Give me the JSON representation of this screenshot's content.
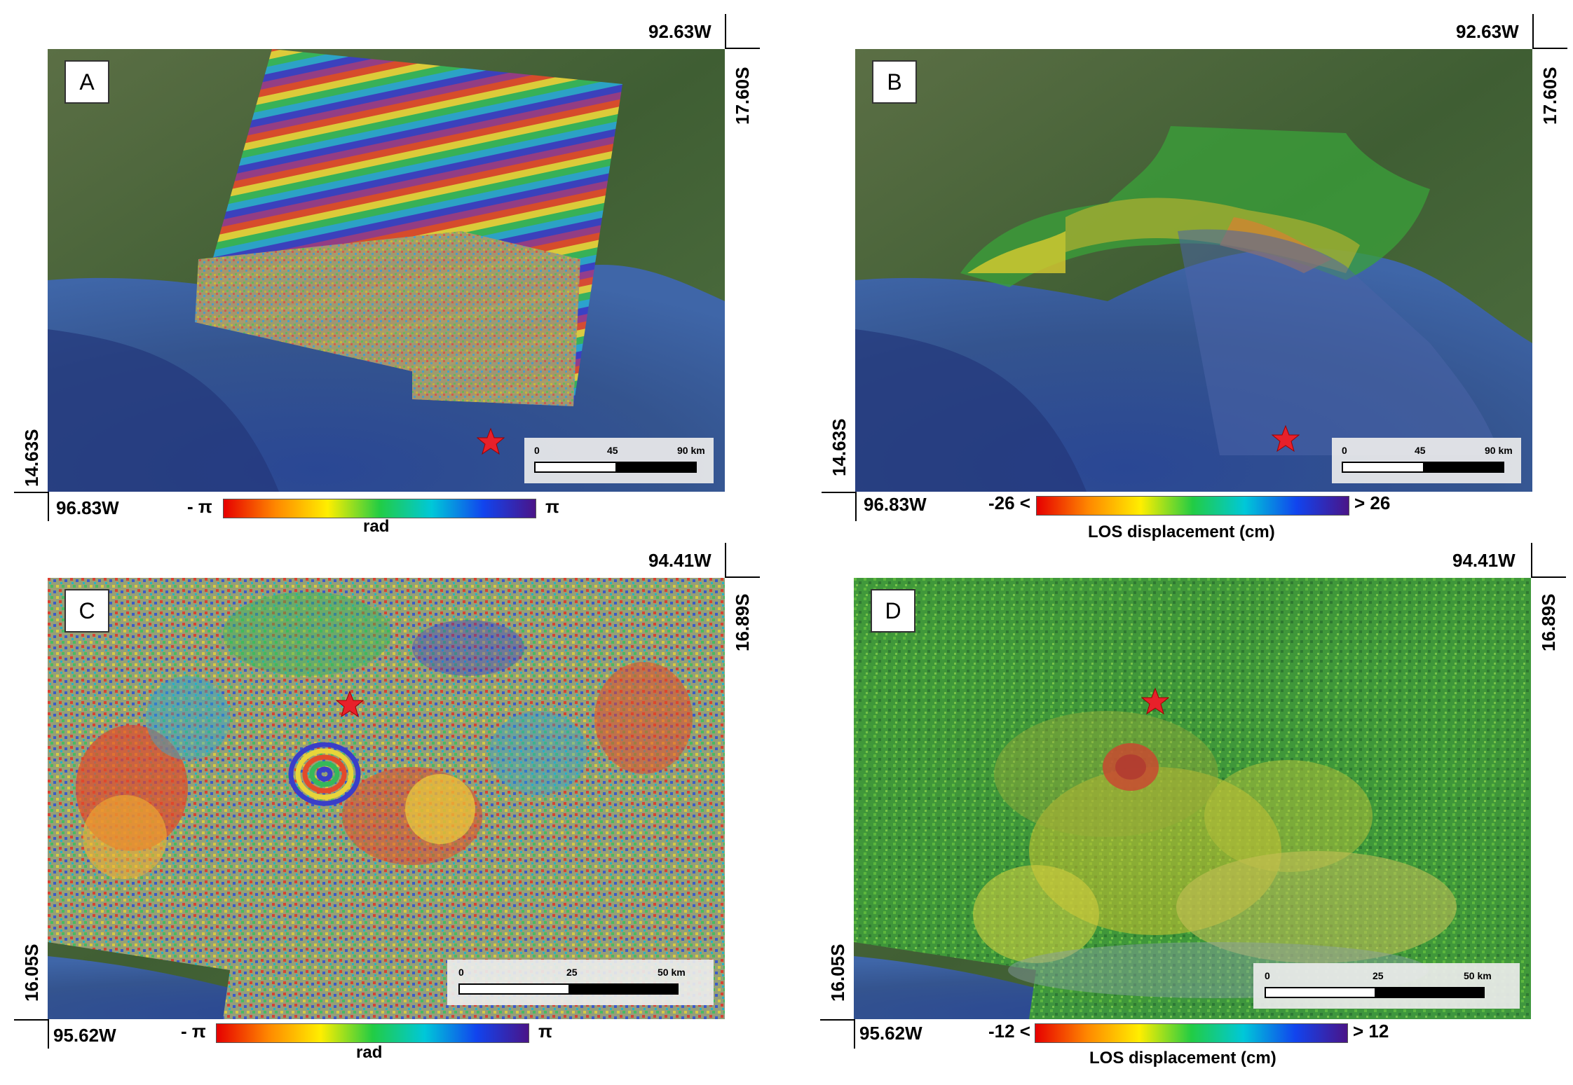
{
  "panels": {
    "a": {
      "letter": "A",
      "lon_right": "92.63W",
      "lat_top": "17.60S",
      "lat_bottom": "14.63S",
      "lon_left": "96.83W",
      "scale": {
        "zero": "0",
        "mid": "45",
        "end": "90 km"
      },
      "cbar": {
        "min": "- π",
        "max": "π",
        "title": "rad"
      }
    },
    "b": {
      "letter": "B",
      "lon_right": "92.63W",
      "lat_top": "17.60S",
      "lat_bottom": "14.63S",
      "lon_left": "96.83W",
      "scale": {
        "zero": "0",
        "mid": "45",
        "end": "90 km"
      },
      "cbar": {
        "min": "-26 <",
        "max": "> 26",
        "title": "LOS displacement (cm)"
      }
    },
    "c": {
      "letter": "C",
      "lon_right": "94.41W",
      "lat_top": "16.89S",
      "lat_bottom": "16.05S",
      "lon_left": "95.62W",
      "scale": {
        "zero": "0",
        "mid": "25",
        "end": "50 km"
      },
      "cbar": {
        "min": "- π",
        "max": "π",
        "title": "rad"
      }
    },
    "d": {
      "letter": "D",
      "lon_right": "94.41W",
      "lat_top": "16.89S",
      "lat_bottom": "16.05S",
      "lon_left": "95.62W",
      "scale": {
        "zero": "0",
        "mid": "25",
        "end": "50 km"
      },
      "cbar": {
        "min": "-12 <",
        "max": "> 12",
        "title": "LOS displacement (cm)"
      }
    }
  },
  "colors": {
    "star": "#e8202a",
    "land": "#4d6b3d",
    "ocean": "#2b4a8e",
    "colormap": [
      "#e60000",
      "#ff8800",
      "#ffee00",
      "#22cc44",
      "#00c8d8",
      "#1144ee",
      "#4a1488"
    ]
  }
}
